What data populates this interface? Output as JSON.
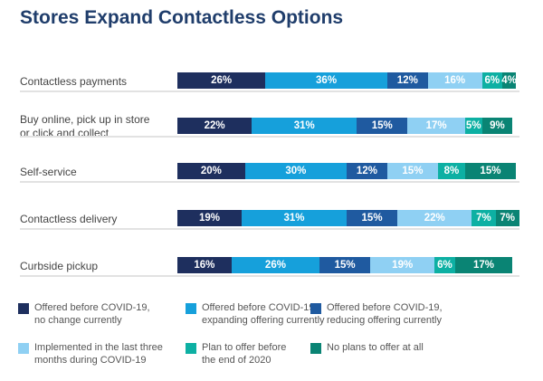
{
  "chart_data": {
    "type": "bar",
    "orientation": "horizontal",
    "stacked": true,
    "title": "Stores Expand Contactless Options",
    "categories": [
      "Contactless payments",
      "Buy online, pick up in store or click and collect",
      "Self-service",
      "Contactless delivery",
      "Curbside pickup"
    ],
    "category_lines": [
      [
        "Contactless payments"
      ],
      [
        "Buy online, pick up in store",
        "or click and collect"
      ],
      [
        "Self-service"
      ],
      [
        "Contactless delivery"
      ],
      [
        "Curbside pickup"
      ]
    ],
    "series": [
      {
        "name": "Offered before COVID-19, no change currently",
        "name_lines": [
          "Offered before COVID-19,",
          "no change currently"
        ],
        "color": "#1e2f5e",
        "values": [
          26,
          22,
          20,
          19,
          16
        ]
      },
      {
        "name": "Offered before COVID-19, expanding offering currently",
        "name_lines": [
          "Offered before COVID-19,",
          "expanding offering currently"
        ],
        "color": "#16a0db",
        "values": [
          36,
          31,
          30,
          31,
          26
        ]
      },
      {
        "name": "Offered before COVID-19, reducing offering currently",
        "name_lines": [
          "Offered before COVID-19,",
          "reducing offering currently"
        ],
        "color": "#1f5aa0",
        "values": [
          12,
          15,
          12,
          15,
          15
        ]
      },
      {
        "name": "Implemented in the last three months during COVID-19",
        "name_lines": [
          "Implemented in the last three",
          "months during COVID-19"
        ],
        "color": "#8fd0f3",
        "values": [
          16,
          17,
          15,
          22,
          19
        ]
      },
      {
        "name": "Plan to offer before the end of 2020",
        "name_lines": [
          "Plan to offer before",
          "the end of 2020"
        ],
        "color": "#0db0a3",
        "values": [
          6,
          5,
          8,
          7,
          6
        ]
      },
      {
        "name": "No plans to offer at all",
        "name_lines": [
          "No plans to offer at all"
        ],
        "color": "#0a8474",
        "values": [
          4,
          9,
          15,
          7,
          17
        ]
      }
    ],
    "unit": "%",
    "legend": "bottom",
    "grid": false
  }
}
